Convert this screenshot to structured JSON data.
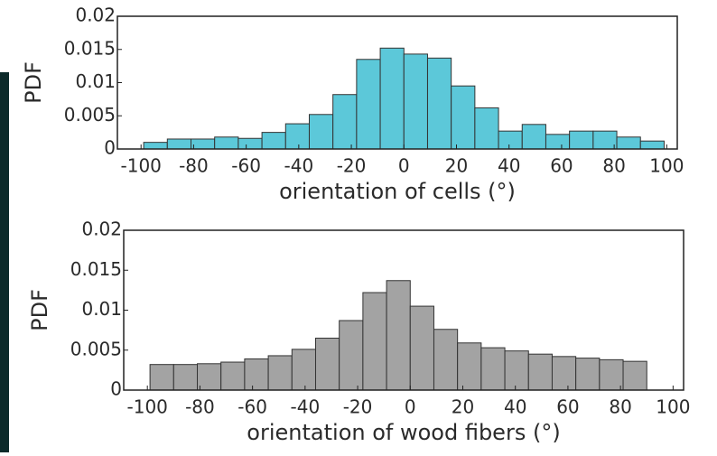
{
  "chart_data": [
    {
      "type": "histogram",
      "xlabel": "orientation of cells (°)",
      "ylabel": "PDF",
      "color": "#5cc8d9",
      "bins": [
        -99,
        -90,
        -81,
        -72,
        -63,
        -54,
        -45,
        -36,
        -27,
        -18,
        -9,
        0,
        9,
        18,
        27,
        36,
        45,
        54,
        63,
        72,
        81,
        90,
        99
      ],
      "values": [
        0.001,
        0.0015,
        0.0015,
        0.0018,
        0.0016,
        0.0025,
        0.0038,
        0.0052,
        0.0082,
        0.0135,
        0.0152,
        0.0143,
        0.0137,
        0.0095,
        0.0062,
        0.0027,
        0.0037,
        0.0022,
        0.0027,
        0.0027,
        0.0018,
        0.0012
      ],
      "xlim": [
        -109,
        104
      ],
      "xticks": [
        -100,
        -80,
        -60,
        -40,
        -20,
        0,
        20,
        40,
        60,
        80,
        100
      ],
      "ylim": [
        0,
        0.02
      ],
      "yticks": [
        0,
        0.005,
        0.01,
        0.015,
        0.02
      ]
    },
    {
      "type": "histogram",
      "xlabel": "orientation of wood fibers (°)",
      "ylabel": "PDF",
      "color": "#a3a3a3",
      "bins": [
        -99,
        -90,
        -81,
        -72,
        -63,
        -54,
        -45,
        -36,
        -27,
        -18,
        -9,
        0,
        9,
        18,
        27,
        36,
        45,
        54,
        63,
        72,
        81,
        90
      ],
      "values": [
        0.0032,
        0.0032,
        0.0033,
        0.0035,
        0.0039,
        0.0043,
        0.0051,
        0.0065,
        0.0087,
        0.0122,
        0.0137,
        0.0105,
        0.0076,
        0.0059,
        0.0053,
        0.0049,
        0.0045,
        0.0042,
        0.004,
        0.0038,
        0.0036
      ],
      "xlim": [
        -109,
        104
      ],
      "xticks": [
        -100,
        -80,
        -60,
        -40,
        -20,
        0,
        20,
        40,
        60,
        80,
        100
      ],
      "ylim": [
        0,
        0.02
      ],
      "yticks": [
        0,
        0.005,
        0.01,
        0.015,
        0.02
      ]
    }
  ]
}
